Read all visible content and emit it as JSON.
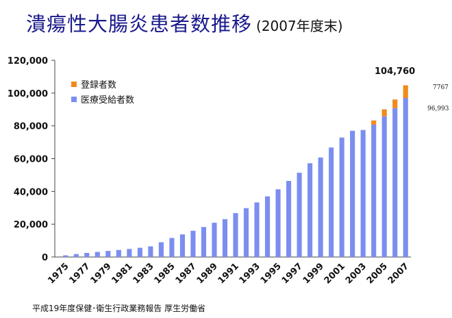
{
  "title": "潰瘍性大腸炎患者数推移",
  "subtitle": "(2007年度末)",
  "source": "平成19年度保健･衛生行政業務報告 厚生労働省",
  "colors": {
    "medical": "#7b8ef0",
    "registered": "#f08a1c",
    "title": "#1a1a8c"
  },
  "chart_data": {
    "type": "bar",
    "stacked": true,
    "categories": [
      "1975",
      "1976",
      "1977",
      "1978",
      "1979",
      "1980",
      "1981",
      "1982",
      "1983",
      "1984",
      "1985",
      "1986",
      "1987",
      "1988",
      "1989",
      "1990",
      "1991",
      "1992",
      "1993",
      "1994",
      "1995",
      "1996",
      "1997",
      "1998",
      "1999",
      "2000",
      "2001",
      "2002",
      "2003",
      "2004",
      "2005",
      "2006",
      "2007"
    ],
    "tick_labels": [
      "1975",
      "1977",
      "1979",
      "1981",
      "1983",
      "1985",
      "1987",
      "1989",
      "1991",
      "1993",
      "1995",
      "1997",
      "1999",
      "2001",
      "2003",
      "2005",
      "2007"
    ],
    "series": [
      {
        "name": "医療受給者数",
        "color": "#7b8ef0",
        "values": [
          1000,
          1800,
          2500,
          3100,
          3700,
          4300,
          4900,
          5600,
          6500,
          9000,
          11600,
          13800,
          16000,
          18300,
          20900,
          23100,
          26800,
          29800,
          33300,
          37000,
          41300,
          46400,
          51400,
          57200,
          60700,
          66800,
          72900,
          77000,
          77500,
          80700,
          85800,
          90800,
          96993
        ]
      },
      {
        "name": "登録者数",
        "color": "#f08a1c",
        "values": [
          0,
          0,
          0,
          0,
          0,
          0,
          0,
          0,
          0,
          0,
          0,
          0,
          0,
          0,
          0,
          0,
          0,
          0,
          0,
          0,
          0,
          0,
          0,
          0,
          0,
          0,
          0,
          0,
          0,
          2600,
          4300,
          5300,
          7767
        ]
      }
    ],
    "ylim": [
      0,
      120000
    ],
    "yticks": [
      "0",
      "20,000",
      "40,000",
      "60,000",
      "80,000",
      "100,000",
      "120,000"
    ],
    "grid": false,
    "legend_position": "top-left",
    "annotations": {
      "total": "104,760",
      "registered": "7767",
      "medical": "96,993"
    }
  }
}
